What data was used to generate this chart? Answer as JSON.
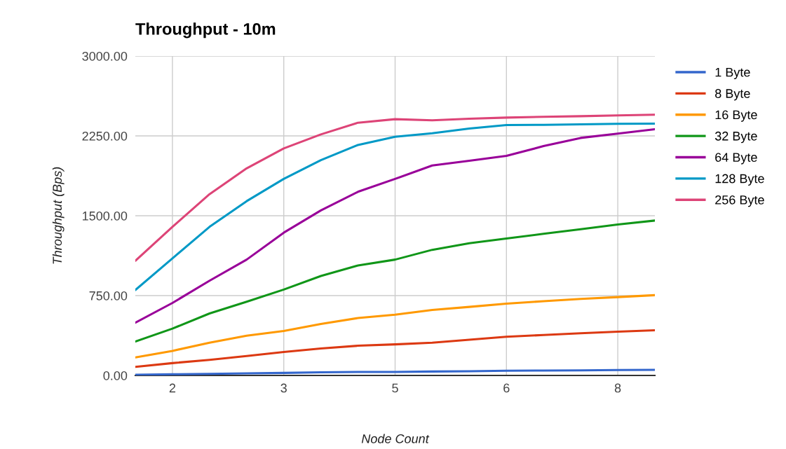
{
  "chart_data": {
    "type": "line",
    "title": "Throughput - 10m",
    "xlabel": "Node Count",
    "ylabel": "Throughput (Bps)",
    "categories": [
      null,
      "2",
      null,
      null,
      "3",
      null,
      null,
      "5",
      null,
      null,
      "6",
      null,
      null,
      "8",
      null
    ],
    "ylim": [
      0,
      3000
    ],
    "yticks": [
      {
        "value": 0,
        "label": "0.00"
      },
      {
        "value": 750,
        "label": "750.00"
      },
      {
        "value": 1500,
        "label": "1500.00"
      },
      {
        "value": 2250,
        "label": "2250.00"
      },
      {
        "value": 3000,
        "label": "3000.00"
      }
    ],
    "grid": true,
    "legend": "right",
    "marker": "none",
    "line_style": "solid",
    "series": [
      {
        "name": "1 Byte",
        "color": "#3366cc",
        "values": [
          7,
          11,
          15,
          20,
          24,
          29,
          33,
          33,
          37,
          40,
          44,
          46,
          48,
          51,
          53
        ]
      },
      {
        "name": "8 Byte",
        "color": "#dc3912",
        "values": [
          81,
          116,
          147,
          182,
          220,
          253,
          279,
          292,
          308,
          336,
          363,
          380,
          396,
          411,
          424
        ]
      },
      {
        "name": "16 Byte",
        "color": "#ff9900",
        "values": [
          169,
          231,
          308,
          374,
          418,
          484,
          539,
          571,
          615,
          644,
          675,
          697,
          719,
          736,
          754
        ]
      },
      {
        "name": "32 Byte",
        "color": "#109618",
        "values": [
          319,
          440,
          582,
          692,
          807,
          934,
          1033,
          1088,
          1180,
          1242,
          1286,
          1330,
          1374,
          1418,
          1455
        ]
      },
      {
        "name": "64 Byte",
        "color": "#990099",
        "values": [
          495,
          681,
          890,
          1088,
          1341,
          1550,
          1725,
          1846,
          1972,
          2016,
          2062,
          2154,
          2231,
          2271,
          2312
        ]
      },
      {
        "name": "128 Byte",
        "color": "#0099c6",
        "values": [
          802,
          1099,
          1396,
          1637,
          1846,
          2022,
          2165,
          2242,
          2275,
          2319,
          2352,
          2354,
          2358,
          2363,
          2365
        ]
      },
      {
        "name": "256 Byte",
        "color": "#dd4477",
        "values": [
          1077,
          1396,
          1703,
          1945,
          2132,
          2264,
          2374,
          2407,
          2396,
          2411,
          2422,
          2429,
          2435,
          2442,
          2449
        ]
      }
    ]
  }
}
